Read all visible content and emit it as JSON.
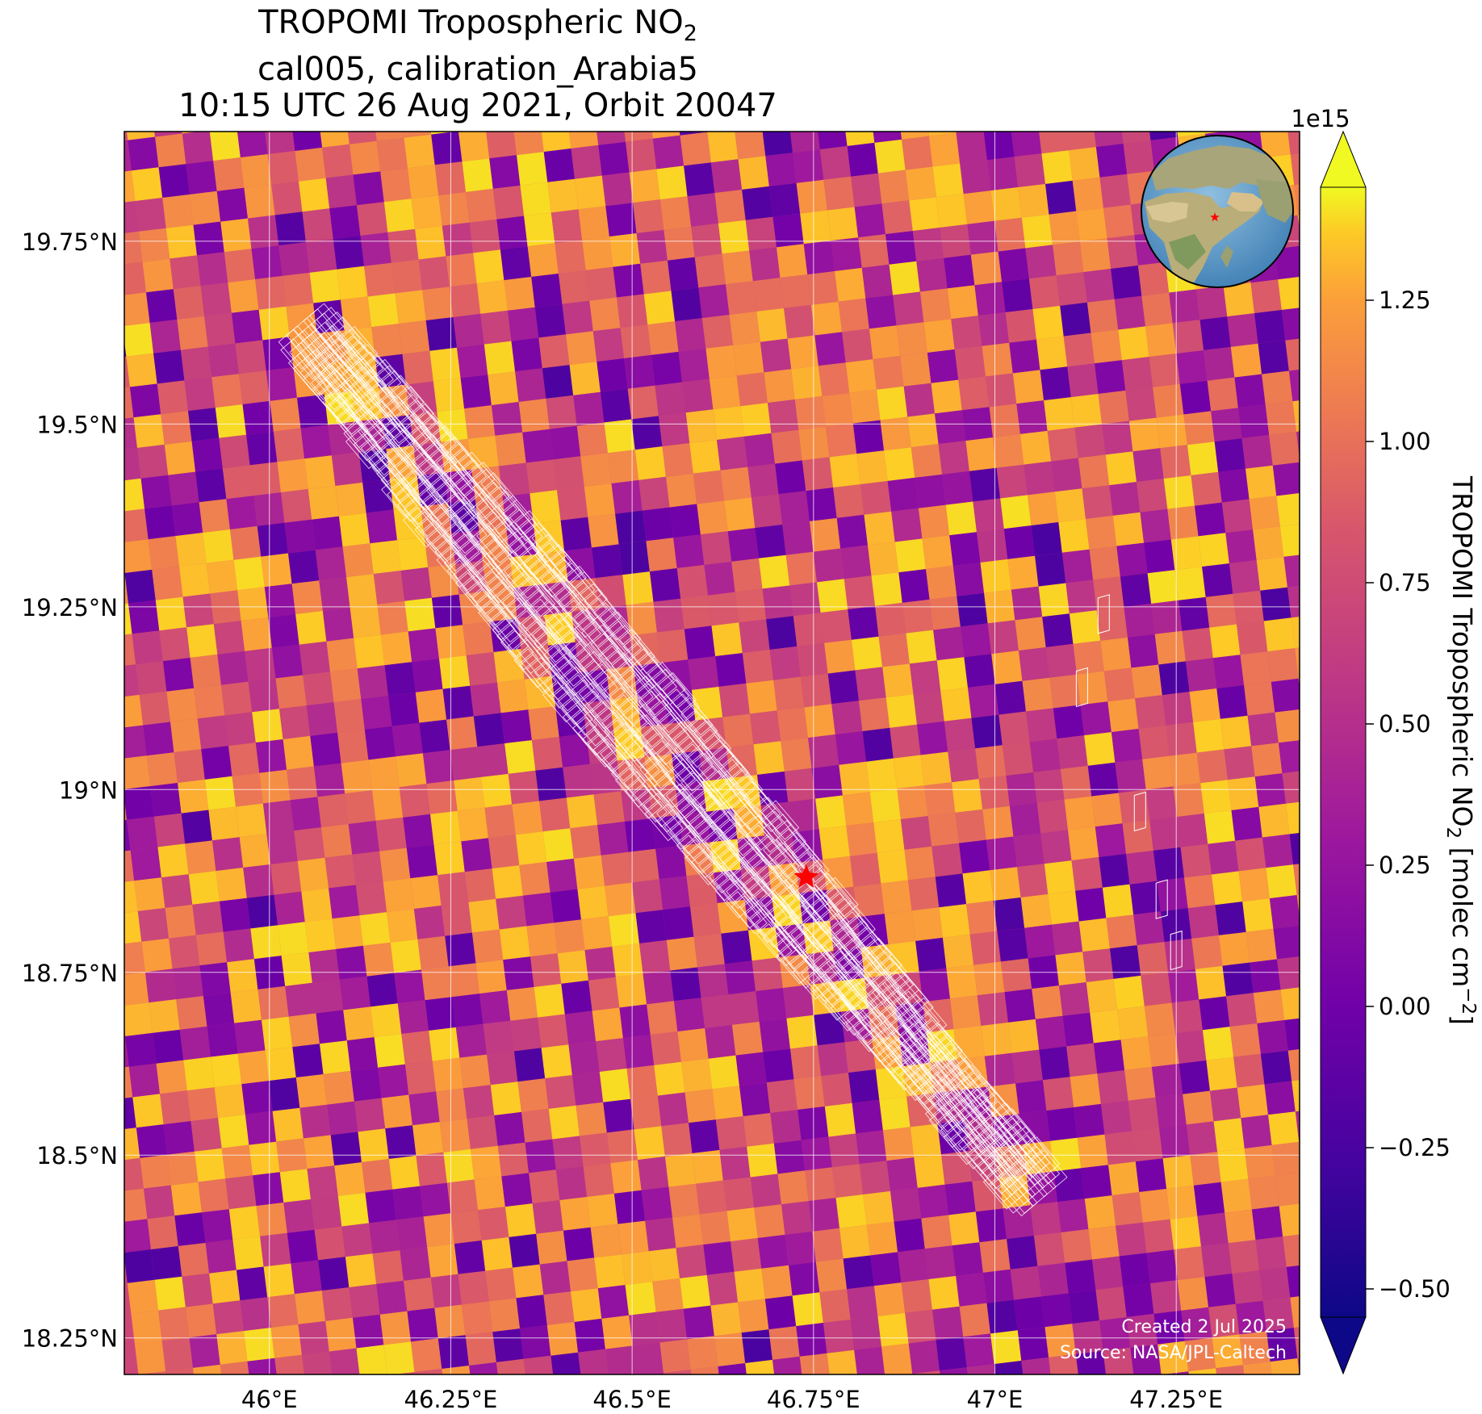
{
  "title": {
    "line1_main": "TROPOMI Tropospheric NO",
    "line1_sub": "2",
    "line2": "cal005, calibration_Arabia5",
    "line3": "10:15 UTC 26 Aug 2021, Orbit 20047"
  },
  "map": {
    "lon_range": [
      45.8,
      47.42
    ],
    "lat_range": [
      18.2,
      19.9
    ],
    "lon_ticks": [
      {
        "value": 46.0,
        "label": "46°E"
      },
      {
        "value": 46.25,
        "label": "46.25°E"
      },
      {
        "value": 46.5,
        "label": "46.5°E"
      },
      {
        "value": 46.75,
        "label": "46.75°E"
      },
      {
        "value": 47.0,
        "label": "47°E"
      },
      {
        "value": 47.25,
        "label": "47.25°E"
      }
    ],
    "lat_ticks": [
      {
        "value": 18.25,
        "label": "18.25°N"
      },
      {
        "value": 18.5,
        "label": "18.5°N"
      },
      {
        "value": 18.75,
        "label": "18.75°N"
      },
      {
        "value": 19.0,
        "label": "19°N"
      },
      {
        "value": 19.25,
        "label": "19.25°N"
      },
      {
        "value": 19.5,
        "label": "19.5°N"
      },
      {
        "value": 19.75,
        "label": "19.75°N"
      }
    ],
    "target": {
      "lon": 46.74,
      "lat": 18.88,
      "color": "#ff0000",
      "icon": "star-icon"
    },
    "swath": {
      "start": {
        "lon": 46.06,
        "lat": 19.62
      },
      "end": {
        "lon": 47.05,
        "lat": 18.46
      }
    },
    "inset_globe": {
      "center_lon": 45,
      "center_lat": 20,
      "marker_color": "#ff0000"
    },
    "grid": true
  },
  "colorbar": {
    "label_main": "TROPOMI Tropospheric NO",
    "label_sub": "2",
    "label_unit": " [molec cm",
    "label_exp": "−2",
    "label_close": "]",
    "multiplier": "1e15",
    "min": -0.55,
    "max": 1.45,
    "colormap": "plasma",
    "extend": "both",
    "ticks": [
      {
        "value": -0.5,
        "label": "−0.50"
      },
      {
        "value": -0.25,
        "label": "−0.25"
      },
      {
        "value": 0.0,
        "label": "0.00"
      },
      {
        "value": 0.25,
        "label": "0.25"
      },
      {
        "value": 0.5,
        "label": "0.50"
      },
      {
        "value": 0.75,
        "label": "0.75"
      },
      {
        "value": 1.0,
        "label": "1.00"
      },
      {
        "value": 1.25,
        "label": "1.25"
      }
    ]
  },
  "credits": {
    "created": "Created 2 Jul 2025",
    "source": "Source: NASA/JPL-Caltech"
  }
}
